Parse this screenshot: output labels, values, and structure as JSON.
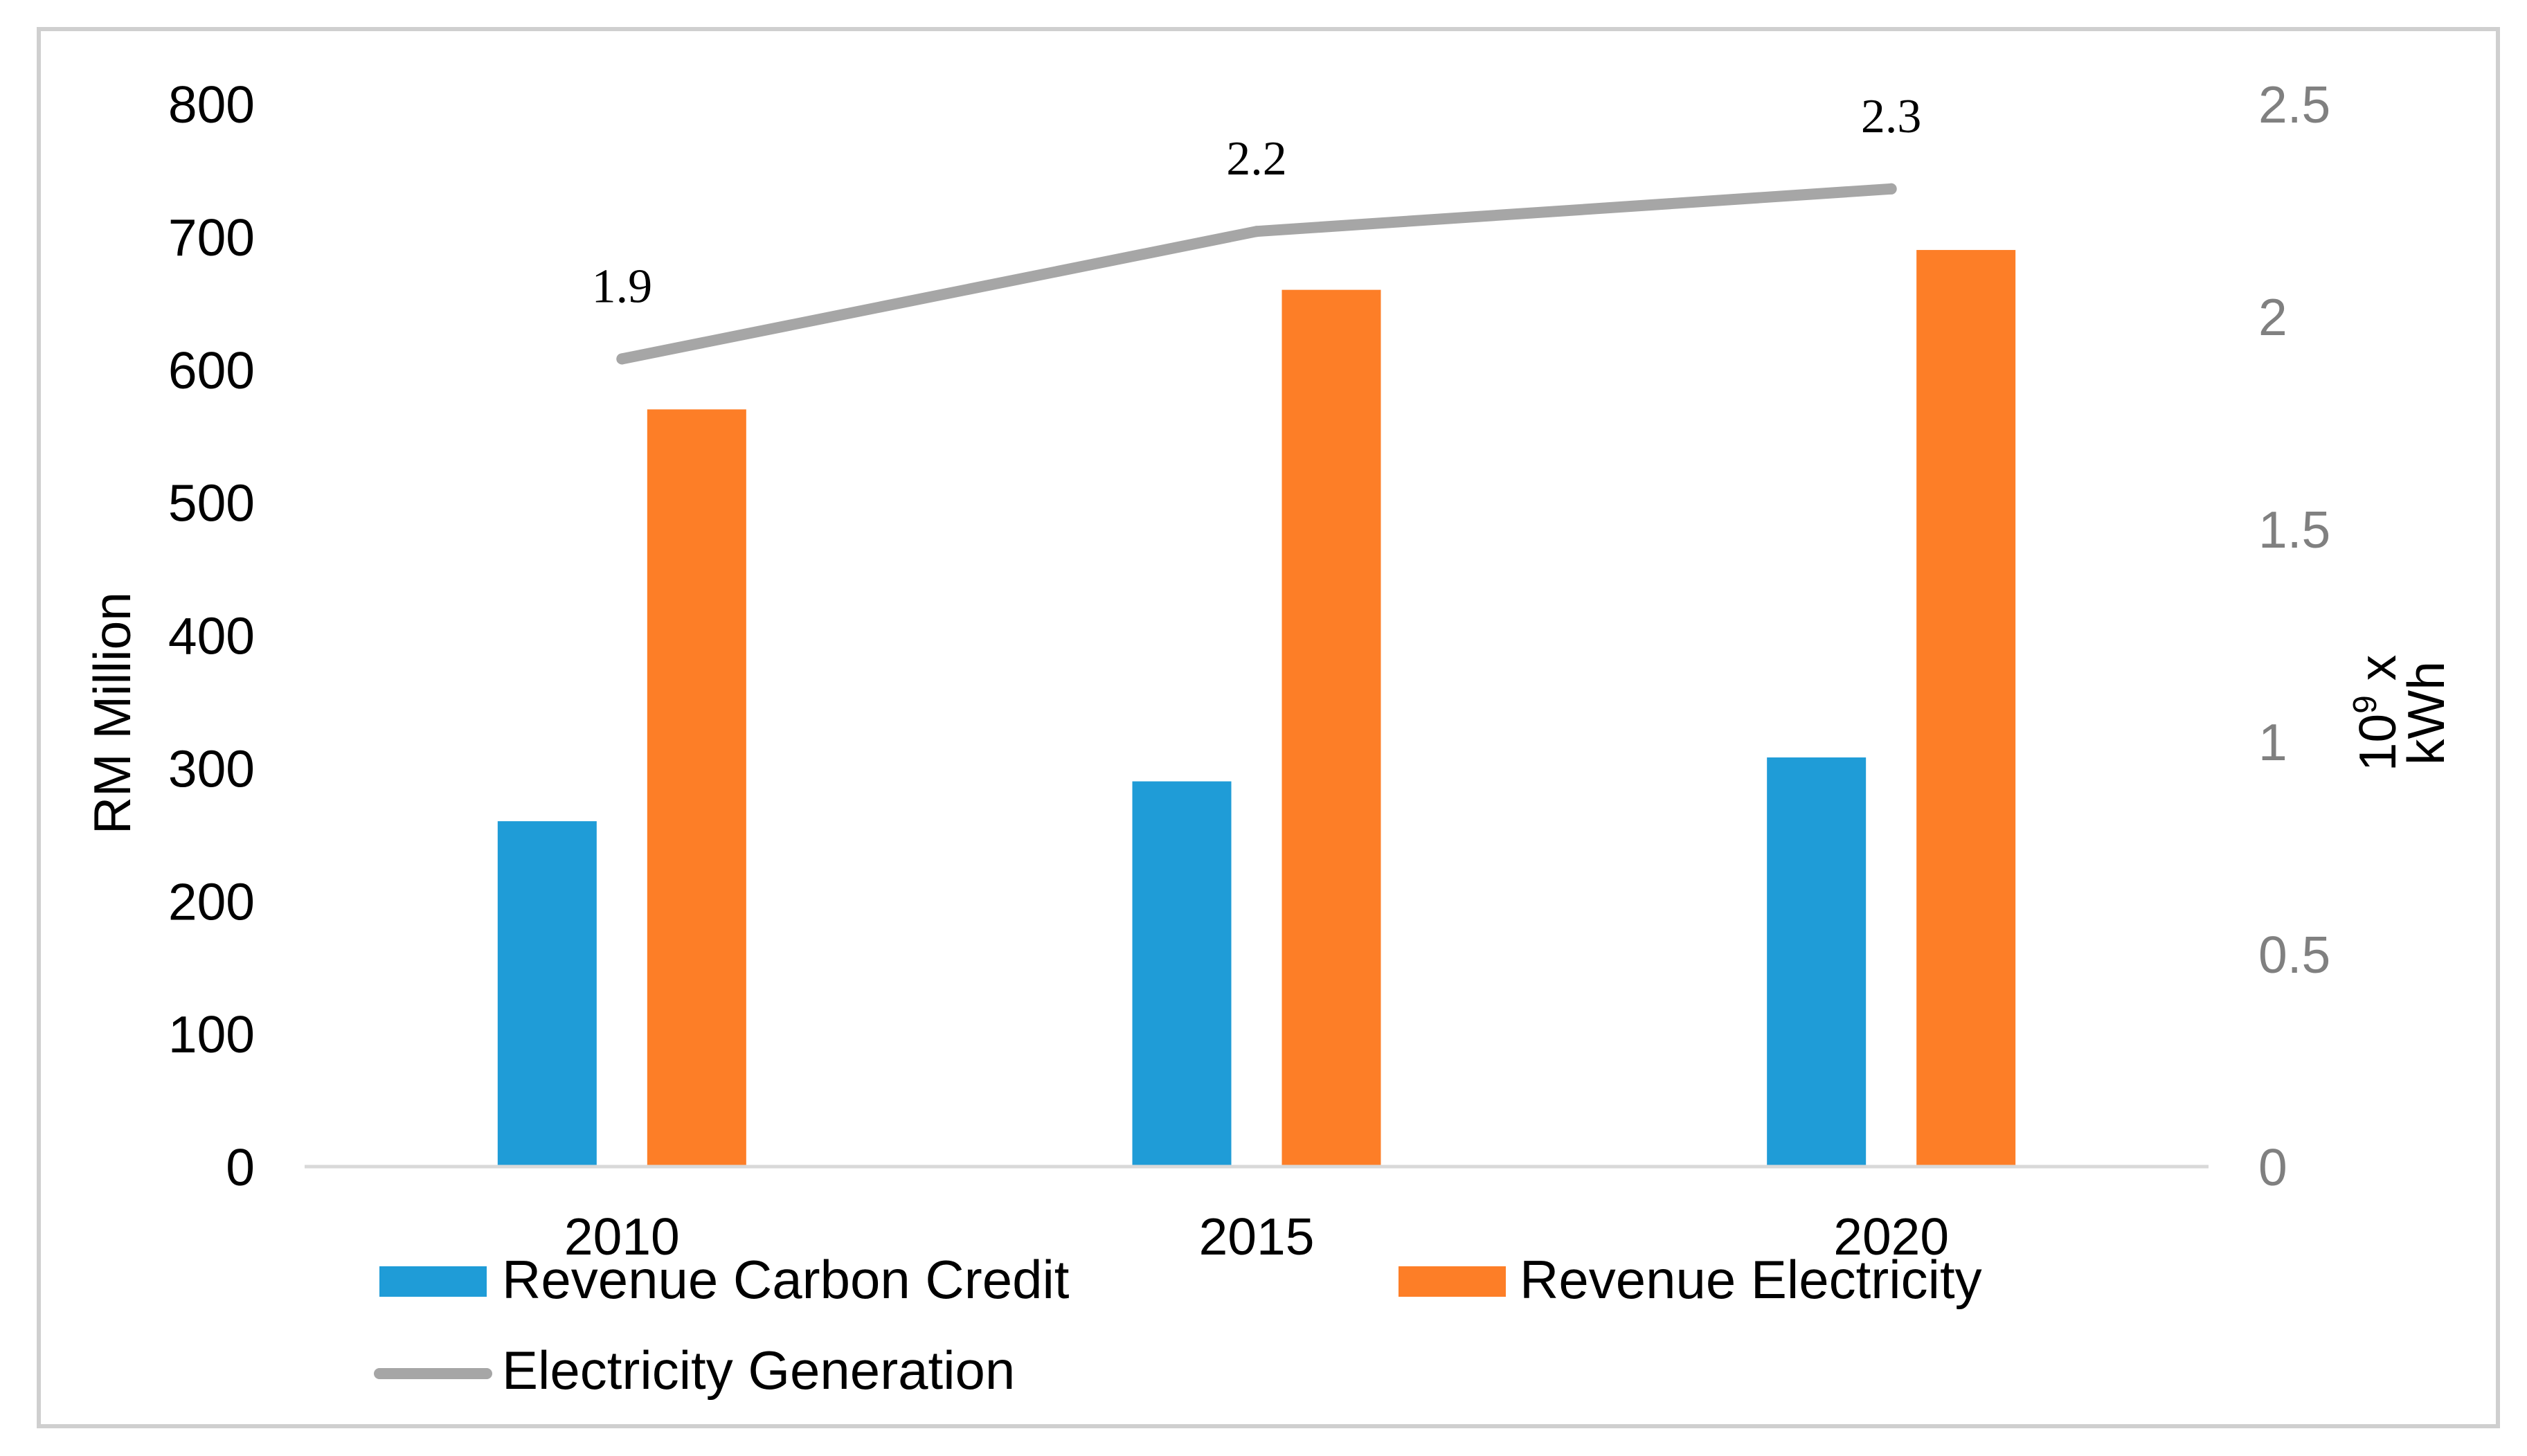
{
  "chart_data": {
    "type": "bar",
    "categories": [
      "2010",
      "2015",
      "2020"
    ],
    "series": [
      {
        "name": "Revenue Carbon Credit",
        "kind": "bar",
        "axis": "left",
        "values": [
          260,
          290,
          308
        ],
        "color": "#1f9cd7"
      },
      {
        "name": "Revenue Electricity",
        "kind": "bar",
        "axis": "left",
        "values": [
          570,
          660,
          690
        ],
        "color": "#fd7e27"
      },
      {
        "name": "Electricity Generation",
        "kind": "line",
        "axis": "right",
        "values": [
          1.9,
          2.2,
          2.3
        ],
        "labels": [
          "1.9",
          "2.2",
          "2.3"
        ],
        "color": "#a6a6a6"
      }
    ],
    "ylabel": "RM Million",
    "ylim": [
      0,
      800
    ],
    "yticks": [
      "0",
      "100",
      "200",
      "300",
      "400",
      "500",
      "600",
      "700",
      "800"
    ],
    "y2label_base": "10",
    "y2label_exp": "9",
    "y2label_suffix": " x",
    "y2label_line2": "kWh",
    "y2lim": [
      0,
      2.5
    ],
    "y2ticks": [
      "0",
      "0.5",
      "1",
      "1.5",
      "2",
      "2.5"
    ],
    "grid": false,
    "legend_position": "bottom"
  }
}
